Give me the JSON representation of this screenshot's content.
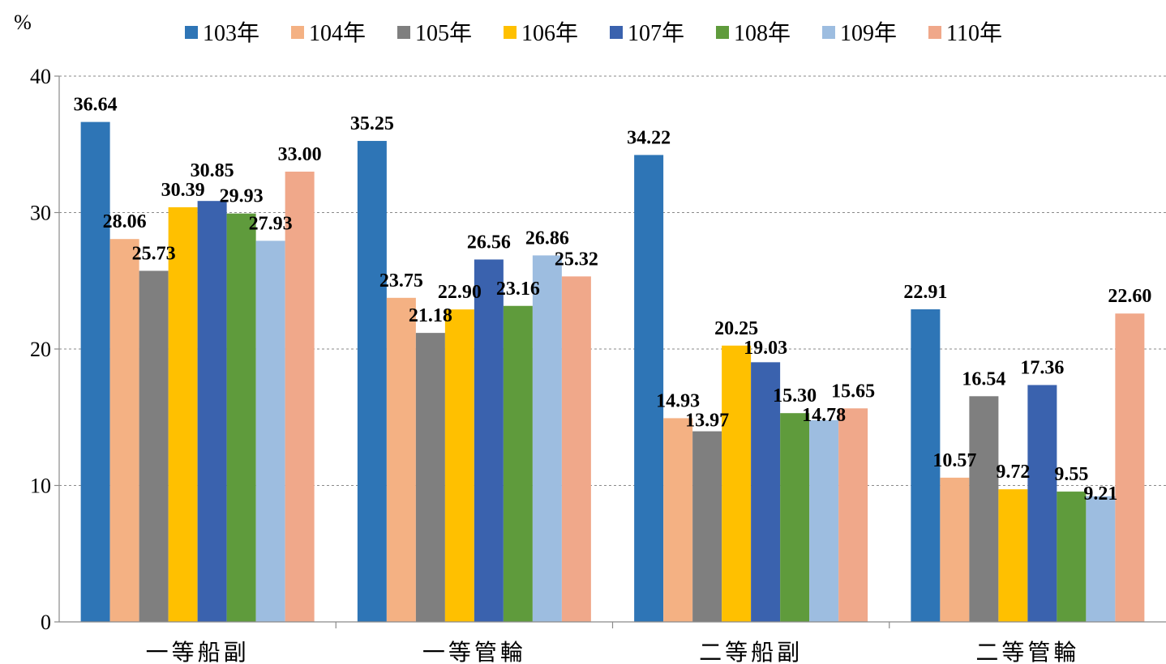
{
  "chart_data": {
    "type": "bar",
    "unit_label": "%",
    "categories": [
      "一等船副",
      "一等管輪",
      "二等船副",
      "二等管輪"
    ],
    "ylim": [
      0,
      40
    ],
    "yticks": [
      0,
      10,
      20,
      30,
      40
    ],
    "grid": true,
    "legend_position": "top",
    "series": [
      {
        "name": "103年",
        "color": "#2E75B6",
        "values": [
          36.64,
          35.25,
          34.22,
          22.91
        ],
        "labels": [
          "36.64",
          "35.25",
          "34.22",
          "22.91"
        ]
      },
      {
        "name": "104年",
        "color": "#F4B183",
        "values": [
          28.06,
          23.75,
          14.93,
          10.57
        ],
        "labels": [
          "28.06",
          "23.75",
          "14.93",
          "10.57"
        ]
      },
      {
        "name": "105年",
        "color": "#7F7F7F",
        "values": [
          25.73,
          21.18,
          13.97,
          16.54
        ],
        "labels": [
          "25.73",
          "21.18",
          "13.97",
          "16.54"
        ]
      },
      {
        "name": "106年",
        "color": "#FFC000",
        "values": [
          30.39,
          22.9,
          20.25,
          9.72
        ],
        "labels": [
          "30.39",
          "22.90",
          "20.25",
          "9.72"
        ]
      },
      {
        "name": "107年",
        "color": "#3A62AE",
        "values": [
          30.85,
          26.56,
          19.03,
          17.36
        ],
        "labels": [
          "30.85",
          "26.56",
          "19.03",
          "17.36"
        ]
      },
      {
        "name": "108年",
        "color": "#5F9B3C",
        "values": [
          29.93,
          23.16,
          15.3,
          9.55
        ],
        "labels": [
          "29.93",
          "23.16",
          "15.30",
          "9.55"
        ]
      },
      {
        "name": "109年",
        "color": "#9DBDE0",
        "values": [
          27.93,
          26.86,
          14.78,
          9.21
        ],
        "labels": [
          "27.93",
          "26.86",
          "14.78",
          "9.21"
        ]
      },
      {
        "name": "110年",
        "color": "#F0A88A",
        "values": [
          33.0,
          25.32,
          15.65,
          22.6
        ],
        "labels": [
          "33.00",
          "25.32",
          "15.65",
          "22.60"
        ]
      }
    ]
  }
}
